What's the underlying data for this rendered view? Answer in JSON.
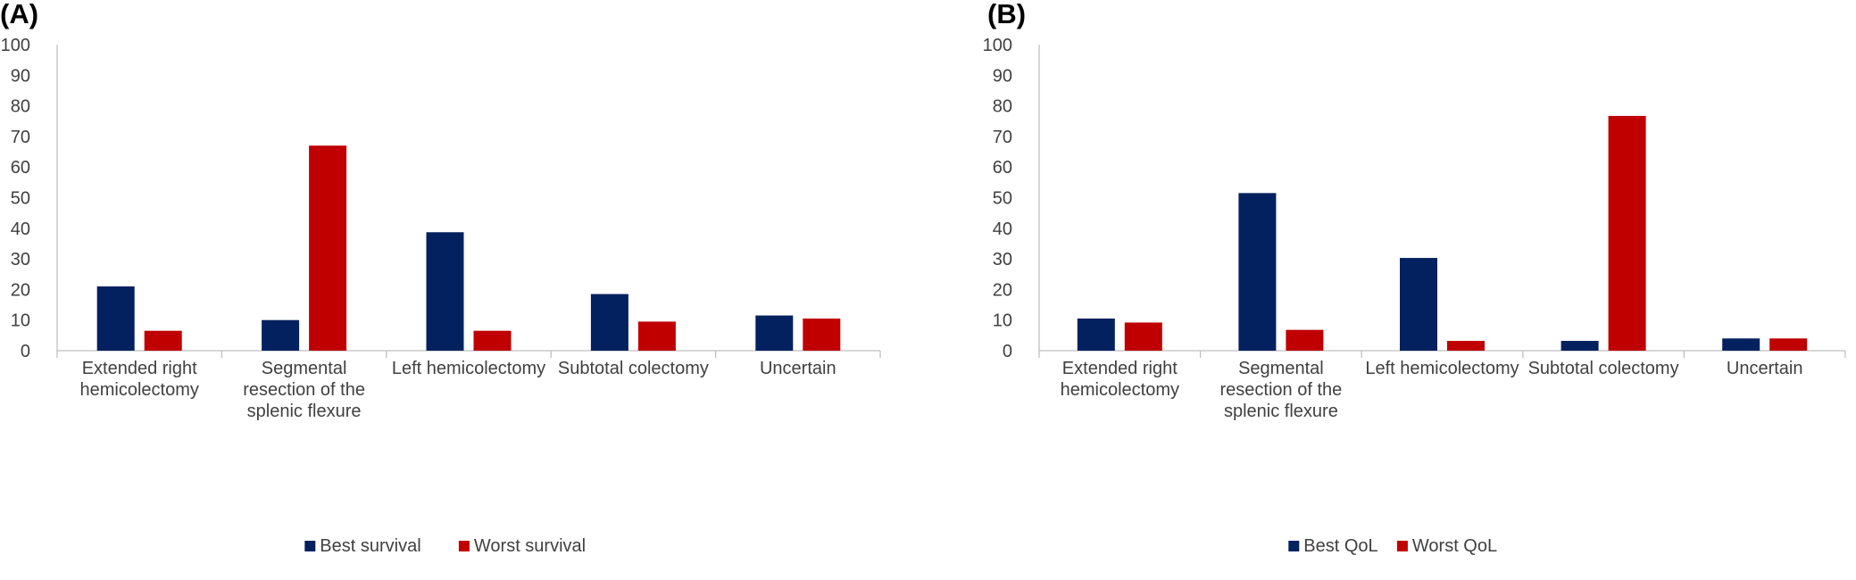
{
  "colors": {
    "best": "#03215f",
    "worst": "#c00000",
    "axis": "#bfbfbf",
    "text": "#404040"
  },
  "chart_data": [
    {
      "panel_label": "(A)",
      "type": "bar",
      "categories": [
        "Extended right hemicolectomy",
        "Segmental resection of the splenic flexure",
        "Left hemicolectomy",
        "Subtotal colectomy",
        "Uncertain"
      ],
      "category_lines": [
        [
          "Extended right",
          "hemicolectomy"
        ],
        [
          "Segmental",
          "resection of the",
          "splenic flexure"
        ],
        [
          "Left hemicolectomy"
        ],
        [
          "Subtotal colectomy"
        ],
        [
          "Uncertain"
        ]
      ],
      "series": [
        {
          "name": "Best survival",
          "color": "#03215f",
          "values": [
            21,
            10,
            38.7,
            18.5,
            11.5
          ]
        },
        {
          "name": "Worst survival",
          "color": "#c00000",
          "values": [
            6.5,
            67,
            6.5,
            9.5,
            10.5
          ]
        }
      ],
      "yticks": [
        "0",
        "10",
        "20",
        "30",
        "40",
        "50",
        "60",
        "70",
        "80",
        "90",
        "100"
      ],
      "ylim": [
        0,
        100
      ],
      "legend_position": "bottom"
    },
    {
      "panel_label": "(B)",
      "type": "bar",
      "categories": [
        "Extended right hemicolectomy",
        "Segmental resection of the splenic flexure",
        "Left hemicolectomy",
        "Subtotal colectomy",
        "Uncertain"
      ],
      "category_lines": [
        [
          "Extended right",
          "hemicolectomy"
        ],
        [
          "Segmental",
          "resection of the",
          "splenic flexure"
        ],
        [
          "Left hemicolectomy"
        ],
        [
          "Subtotal colectomy"
        ],
        [
          "Uncertain"
        ]
      ],
      "series": [
        {
          "name": "Best QoL",
          "color": "#03215f",
          "values": [
            10.5,
            51.5,
            30.3,
            3.2,
            4
          ]
        },
        {
          "name": "Worst QoL",
          "color": "#c00000",
          "values": [
            9.2,
            6.8,
            3.2,
            76.7,
            4
          ]
        }
      ],
      "yticks": [
        "0",
        "10",
        "20",
        "30",
        "40",
        "50",
        "60",
        "70",
        "80",
        "90",
        "100"
      ],
      "ylim": [
        0,
        100
      ],
      "legend_position": "bottom"
    }
  ]
}
